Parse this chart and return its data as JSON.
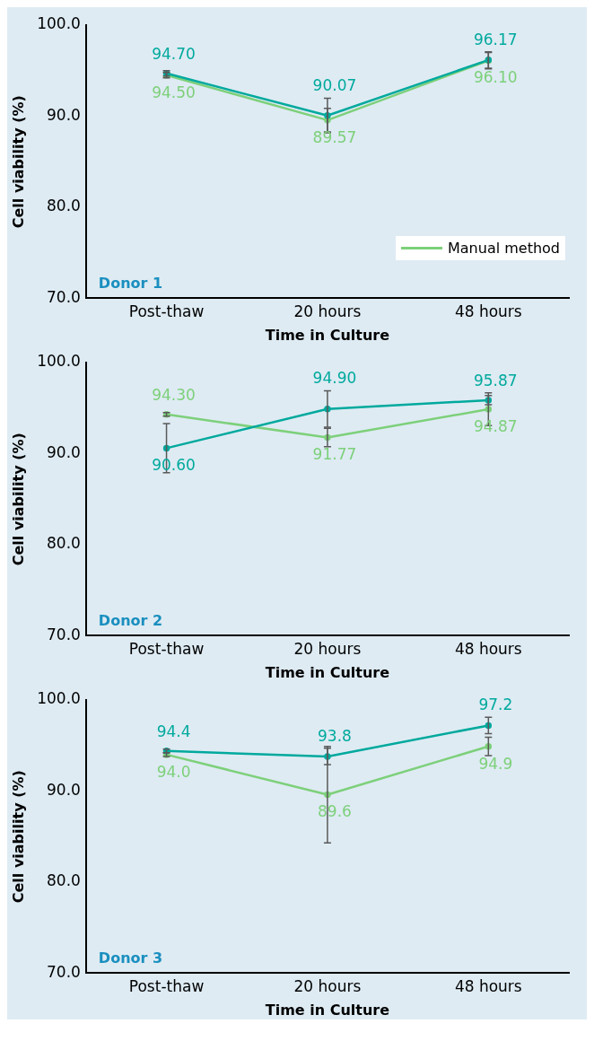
{
  "chart_data": [
    {
      "type": "line",
      "xlabel": "Time in Culture",
      "ylabel": "Cell viability (%)",
      "categories": [
        "Post-thaw",
        "20 hours",
        "48 hours"
      ],
      "ylim": [
        70,
        100
      ],
      "yticks": [
        {
          "value": 70,
          "label": "70.0"
        },
        {
          "value": 80,
          "label": "80.0"
        },
        {
          "value": 90,
          "label": "90.0"
        },
        {
          "value": 100,
          "label": "100.0"
        }
      ],
      "grid": false,
      "legend": "bottom right",
      "marker": "circle",
      "annotations": [
        "Donor 1"
      ],
      "series": [
        {
          "color": "#00a99d",
          "values": [
            94.7,
            90.07,
            96.17
          ],
          "value_labels": [
            "94.70",
            "90.07",
            "96.17"
          ],
          "errors": [
            0.3,
            1.9,
            0.9
          ]
        },
        {
          "name": "Manual method",
          "color": "#7dd07a",
          "values": [
            94.5,
            89.57,
            96.1
          ],
          "value_labels": [
            "94.50",
            "89.57",
            "96.10"
          ],
          "errors": [
            0.3,
            1.3,
            0.9
          ]
        }
      ]
    },
    {
      "type": "line",
      "xlabel": "Time in Culture",
      "ylabel": "Cell viability (%)",
      "categories": [
        "Post-thaw",
        "20 hours",
        "48 hours"
      ],
      "ylim": [
        70,
        100
      ],
      "yticks": [
        {
          "value": 70,
          "label": "70.0"
        },
        {
          "value": 80,
          "label": "80.0"
        },
        {
          "value": 90,
          "label": "90.0"
        },
        {
          "value": 100,
          "label": "100.0"
        }
      ],
      "grid": false,
      "marker": "circle",
      "annotations": [
        "Donor 2"
      ],
      "series": [
        {
          "color": "#00a99d",
          "values": [
            90.6,
            94.9,
            95.87
          ],
          "value_labels": [
            "90.60",
            "94.90",
            "95.87"
          ],
          "errors": [
            2.7,
            2.0,
            0.5
          ]
        },
        {
          "color": "#7dd07a",
          "values": [
            94.3,
            91.77,
            94.87
          ],
          "value_labels": [
            "94.30",
            "91.77",
            "94.87"
          ],
          "errors": [
            0.2,
            1.0,
            1.8
          ]
        }
      ]
    },
    {
      "type": "line",
      "xlabel": "Time in Culture",
      "ylabel": "Cell viability (%)",
      "categories": [
        "Post-thaw",
        "20 hours",
        "48 hours"
      ],
      "ylim": [
        70,
        100
      ],
      "yticks": [
        {
          "value": 70,
          "label": "70.0"
        },
        {
          "value": 80,
          "label": "80.0"
        },
        {
          "value": 90,
          "label": "90.0"
        },
        {
          "value": 100,
          "label": "100.0"
        }
      ],
      "grid": false,
      "marker": "circle",
      "annotations": [
        "Donor 3"
      ],
      "series": [
        {
          "color": "#00a99d",
          "values": [
            94.4,
            93.8,
            97.2
          ],
          "value_labels": [
            "94.4",
            "93.8",
            "97.2"
          ],
          "errors": [
            0.2,
            0.9,
            0.9
          ]
        },
        {
          "color": "#7dd07a",
          "values": [
            94.0,
            89.6,
            94.9
          ],
          "value_labels": [
            "94.0",
            "89.6",
            "94.9"
          ],
          "errors": [
            0.2,
            5.3,
            1.0
          ]
        }
      ]
    }
  ]
}
